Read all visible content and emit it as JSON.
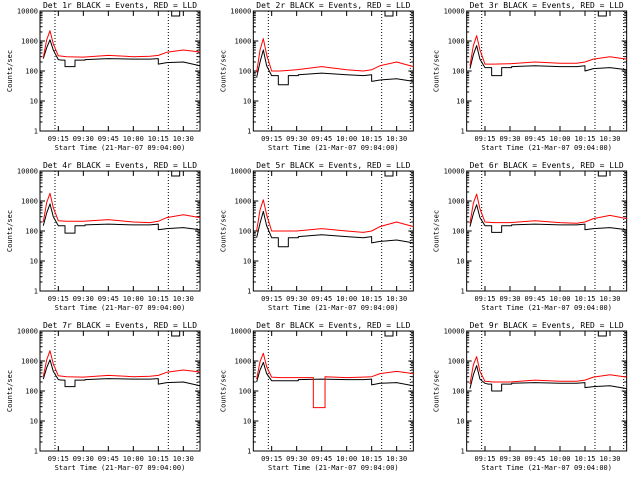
{
  "shared": {
    "x_tick_labels": [
      "09:15",
      "09:30",
      "09:45",
      "10:00",
      "10:15",
      "10:30"
    ],
    "y_tick_labels": [
      "1",
      "10",
      "100",
      "1000",
      "10000"
    ],
    "xlabel": "Start Time (21-Mar-07 09:04:00)",
    "ylabel": "Counts/sec",
    "colors": {
      "events": "#000000",
      "lld": "#ff0000"
    }
  },
  "chart_data": [
    {
      "type": "line",
      "title": "Det 1r BLACK = Events, RED = LLD",
      "xlabel": "Start Time (21-Mar-07 09:04:00)",
      "ylabel": "Counts/sec",
      "x_ticks": [
        "09:15",
        "09:30",
        "09:45",
        "10:00",
        "10:15",
        "10:30"
      ],
      "ylim": [
        1,
        10000
      ],
      "yscale": "log",
      "series": [
        {
          "color": "#000000",
          "x": [
            "09:06",
            "09:08",
            "09:10",
            "09:12",
            "09:15",
            "09:17",
            "09:19",
            "09:19",
            "09:25",
            "09:25",
            "09:31",
            "09:31",
            "09:45",
            "10:00",
            "10:10",
            "10:15",
            "10:15",
            "10:20",
            "10:30",
            "10:40"
          ],
          "y": [
            260,
            600,
            1100,
            500,
            240,
            230,
            230,
            140,
            140,
            230,
            230,
            240,
            260,
            250,
            250,
            260,
            170,
            190,
            200,
            150
          ]
        },
        {
          "color": "#ff0000",
          "x": [
            "09:06",
            "09:08",
            "09:10",
            "09:12",
            "09:15",
            "09:20",
            "09:30",
            "09:45",
            "10:00",
            "10:10",
            "10:15",
            "10:20",
            "10:30",
            "10:40"
          ],
          "y": [
            280,
            1100,
            2200,
            800,
            320,
            300,
            290,
            330,
            300,
            310,
            330,
            420,
            500,
            430
          ]
        }
      ]
    },
    {
      "type": "line",
      "title": "Det 2r BLACK = Events, RED = LLD",
      "xlabel": "Start Time (21-Mar-07 09:04:00)",
      "ylabel": "Counts/sec",
      "x_ticks": [
        "09:15",
        "09:30",
        "09:45",
        "10:00",
        "10:15",
        "10:30"
      ],
      "ylim": [
        1,
        10000
      ],
      "yscale": "log",
      "series": [
        {
          "color": "#000000",
          "x": [
            "09:06",
            "09:08",
            "09:10",
            "09:12",
            "09:15",
            "09:17",
            "09:19",
            "09:19",
            "09:25",
            "09:25",
            "09:31",
            "09:31",
            "09:45",
            "10:00",
            "10:10",
            "10:15",
            "10:15",
            "10:20",
            "10:30",
            "10:40"
          ],
          "y": [
            60,
            200,
            500,
            150,
            70,
            70,
            70,
            35,
            35,
            70,
            70,
            75,
            85,
            75,
            70,
            75,
            45,
            50,
            55,
            45
          ]
        },
        {
          "color": "#ff0000",
          "x": [
            "09:06",
            "09:08",
            "09:10",
            "09:12",
            "09:15",
            "09:20",
            "09:30",
            "09:45",
            "10:00",
            "10:10",
            "10:15",
            "10:20",
            "10:30",
            "10:40"
          ],
          "y": [
            90,
            500,
            1200,
            350,
            100,
            100,
            110,
            140,
            110,
            100,
            110,
            150,
            200,
            140
          ]
        }
      ]
    },
    {
      "type": "line",
      "title": "Det 3r BLACK = Events, RED = LLD",
      "xlabel": "Start Time (21-Mar-07 09:04:00)",
      "ylabel": "Counts/sec",
      "x_ticks": [
        "09:15",
        "09:30",
        "09:45",
        "10:00",
        "10:15",
        "10:30"
      ],
      "ylim": [
        1,
        10000
      ],
      "yscale": "log",
      "series": [
        {
          "color": "#000000",
          "x": [
            "09:06",
            "09:08",
            "09:10",
            "09:12",
            "09:15",
            "09:17",
            "09:19",
            "09:19",
            "09:25",
            "09:25",
            "09:31",
            "09:31",
            "09:45",
            "10:00",
            "10:10",
            "10:15",
            "10:15",
            "10:20",
            "10:30",
            "10:40"
          ],
          "y": [
            120,
            350,
            700,
            250,
            130,
            130,
            130,
            70,
            70,
            130,
            130,
            140,
            150,
            140,
            140,
            150,
            100,
            120,
            130,
            110
          ]
        },
        {
          "color": "#ff0000",
          "x": [
            "09:06",
            "09:08",
            "09:10",
            "09:12",
            "09:15",
            "09:20",
            "09:30",
            "09:45",
            "10:00",
            "10:10",
            "10:15",
            "10:20",
            "10:30",
            "10:40"
          ],
          "y": [
            150,
            700,
            1500,
            500,
            170,
            170,
            175,
            200,
            180,
            180,
            200,
            250,
            300,
            250
          ]
        }
      ]
    },
    {
      "type": "line",
      "title": "Det 4r BLACK = Events, RED = LLD",
      "xlabel": "Start Time (21-Mar-07 09:04:00)",
      "ylabel": "Counts/sec",
      "x_ticks": [
        "09:15",
        "09:30",
        "09:45",
        "10:00",
        "10:15",
        "10:30"
      ],
      "ylim": [
        1,
        10000
      ],
      "yscale": "log",
      "series": [
        {
          "color": "#000000",
          "x": [
            "09:06",
            "09:08",
            "09:10",
            "09:12",
            "09:15",
            "09:17",
            "09:19",
            "09:19",
            "09:25",
            "09:25",
            "09:31",
            "09:31",
            "09:45",
            "10:00",
            "10:10",
            "10:15",
            "10:15",
            "10:20",
            "10:30",
            "10:40"
          ],
          "y": [
            150,
            400,
            800,
            300,
            150,
            150,
            150,
            85,
            85,
            150,
            150,
            160,
            170,
            160,
            160,
            170,
            110,
            120,
            130,
            110
          ]
        },
        {
          "color": "#ff0000",
          "x": [
            "09:06",
            "09:08",
            "09:10",
            "09:12",
            "09:15",
            "09:20",
            "09:30",
            "09:45",
            "10:00",
            "10:10",
            "10:15",
            "10:20",
            "10:30",
            "10:40"
          ],
          "y": [
            200,
            900,
            1800,
            600,
            220,
            210,
            210,
            240,
            200,
            190,
            210,
            280,
            350,
            280
          ]
        }
      ]
    },
    {
      "type": "line",
      "title": "Det 5r BLACK = Events, RED = LLD",
      "xlabel": "Start Time (21-Mar-07 09:04:00)",
      "ylabel": "Counts/sec",
      "x_ticks": [
        "09:15",
        "09:30",
        "09:45",
        "10:00",
        "10:15",
        "10:30"
      ],
      "ylim": [
        1,
        10000
      ],
      "yscale": "log",
      "series": [
        {
          "color": "#000000",
          "x": [
            "09:06",
            "09:08",
            "09:10",
            "09:12",
            "09:15",
            "09:17",
            "09:19",
            "09:19",
            "09:25",
            "09:25",
            "09:31",
            "09:31",
            "09:45",
            "10:00",
            "10:10",
            "10:15",
            "10:15",
            "10:20",
            "10:30",
            "10:40"
          ],
          "y": [
            60,
            180,
            450,
            150,
            60,
            60,
            60,
            30,
            30,
            60,
            60,
            65,
            75,
            65,
            60,
            65,
            40,
            45,
            50,
            40
          ]
        },
        {
          "color": "#ff0000",
          "x": [
            "09:06",
            "09:08",
            "09:10",
            "09:12",
            "09:15",
            "09:20",
            "09:30",
            "09:45",
            "10:00",
            "10:10",
            "10:15",
            "10:20",
            "10:30",
            "10:40"
          ],
          "y": [
            100,
            500,
            1100,
            350,
            100,
            100,
            100,
            120,
            100,
            90,
            100,
            140,
            200,
            140
          ]
        }
      ]
    },
    {
      "type": "line",
      "title": "Det 6r BLACK = Events, RED = LLD",
      "xlabel": "Start Time (21-Mar-07 09:04:00)",
      "ylabel": "Counts/sec",
      "x_ticks": [
        "09:15",
        "09:30",
        "09:45",
        "10:00",
        "10:15",
        "10:30"
      ],
      "ylim": [
        1,
        10000
      ],
      "yscale": "log",
      "series": [
        {
          "color": "#000000",
          "x": [
            "09:06",
            "09:08",
            "09:10",
            "09:12",
            "09:15",
            "09:17",
            "09:19",
            "09:19",
            "09:25",
            "09:25",
            "09:31",
            "09:31",
            "09:45",
            "10:00",
            "10:10",
            "10:15",
            "10:15",
            "10:20",
            "10:30",
            "10:40"
          ],
          "y": [
            140,
            380,
            750,
            280,
            150,
            150,
            150,
            90,
            90,
            150,
            150,
            160,
            170,
            160,
            160,
            170,
            110,
            120,
            130,
            110
          ]
        },
        {
          "color": "#ff0000",
          "x": [
            "09:06",
            "09:08",
            "09:10",
            "09:12",
            "09:15",
            "09:20",
            "09:30",
            "09:45",
            "10:00",
            "10:10",
            "10:15",
            "10:20",
            "10:30",
            "10:40"
          ],
          "y": [
            180,
            850,
            1700,
            550,
            200,
            190,
            190,
            220,
            190,
            180,
            200,
            260,
            330,
            260
          ]
        }
      ]
    },
    {
      "type": "line",
      "title": "Det 7r BLACK = Events, RED = LLD",
      "xlabel": "Start Time (21-Mar-07 09:04:00)",
      "ylabel": "Counts/sec",
      "x_ticks": [
        "09:15",
        "09:30",
        "09:45",
        "10:00",
        "10:15",
        "10:30"
      ],
      "ylim": [
        1,
        10000
      ],
      "yscale": "log",
      "series": [
        {
          "color": "#000000",
          "x": [
            "09:06",
            "09:08",
            "09:10",
            "09:12",
            "09:15",
            "09:17",
            "09:19",
            "09:19",
            "09:25",
            "09:25",
            "09:31",
            "09:31",
            "09:45",
            "10:00",
            "10:10",
            "10:15",
            "10:15",
            "10:20",
            "10:30",
            "10:40"
          ],
          "y": [
            250,
            600,
            1100,
            450,
            240,
            230,
            230,
            140,
            140,
            230,
            230,
            240,
            260,
            250,
            250,
            260,
            170,
            190,
            200,
            150
          ]
        },
        {
          "color": "#ff0000",
          "x": [
            "09:06",
            "09:08",
            "09:10",
            "09:12",
            "09:15",
            "09:20",
            "09:30",
            "09:45",
            "10:00",
            "10:10",
            "10:15",
            "10:20",
            "10:30",
            "10:40"
          ],
          "y": [
            300,
            1100,
            2200,
            800,
            320,
            300,
            290,
            330,
            300,
            310,
            330,
            420,
            500,
            430
          ]
        }
      ]
    },
    {
      "type": "line",
      "title": "Det 8r BLACK = Events, RED = LLD",
      "xlabel": "Start Time (21-Mar-07 09:04:00)",
      "ylabel": "Counts/sec",
      "x_ticks": [
        "09:15",
        "09:30",
        "09:45",
        "10:00",
        "10:15",
        "10:30"
      ],
      "ylim": [
        1,
        10000
      ],
      "yscale": "log",
      "series": [
        {
          "color": "#000000",
          "x": [
            "09:06",
            "09:08",
            "09:10",
            "09:12",
            "09:15",
            "09:17",
            "09:19",
            "09:19",
            "09:25",
            "09:25",
            "09:31",
            "09:31",
            "09:45",
            "10:00",
            "10:10",
            "10:15",
            "10:15",
            "10:20",
            "10:30",
            "10:40"
          ],
          "y": [
            200,
            500,
            900,
            380,
            220,
            220,
            220,
            220,
            220,
            220,
            220,
            240,
            250,
            240,
            240,
            250,
            160,
            180,
            190,
            150
          ]
        },
        {
          "color": "#ff0000",
          "x": [
            "09:06",
            "09:08",
            "09:10",
            "09:12",
            "09:15",
            "09:20",
            "09:30",
            "09:40",
            "09:40",
            "09:47",
            "09:47",
            "10:00",
            "10:10",
            "10:15",
            "10:20",
            "10:30",
            "10:40"
          ],
          "y": [
            250,
            950,
            1800,
            650,
            290,
            280,
            280,
            280,
            28,
            28,
            300,
            280,
            290,
            300,
            380,
            450,
            380
          ]
        }
      ]
    },
    {
      "type": "line",
      "title": "Det 9r BLACK = Events, RED = LLD",
      "xlabel": "Start Time (21-Mar-07 09:04:00)",
      "ylabel": "Counts/sec",
      "x_ticks": [
        "09:15",
        "09:30",
        "09:45",
        "10:00",
        "10:15",
        "10:30"
      ],
      "ylim": [
        1,
        10000
      ],
      "yscale": "log",
      "series": [
        {
          "color": "#000000",
          "x": [
            "09:06",
            "09:08",
            "09:10",
            "09:12",
            "09:15",
            "09:17",
            "09:19",
            "09:19",
            "09:25",
            "09:25",
            "09:31",
            "09:31",
            "09:45",
            "10:00",
            "10:10",
            "10:15",
            "10:15",
            "10:20",
            "10:30",
            "10:40"
          ],
          "y": [
            120,
            350,
            700,
            250,
            180,
            170,
            170,
            100,
            100,
            170,
            170,
            180,
            190,
            180,
            180,
            190,
            130,
            140,
            150,
            120
          ]
        },
        {
          "color": "#ff0000",
          "x": [
            "09:06",
            "09:08",
            "09:10",
            "09:12",
            "09:15",
            "09:20",
            "09:30",
            "09:45",
            "10:00",
            "10:10",
            "10:15",
            "10:20",
            "10:30",
            "10:40"
          ],
          "y": [
            170,
            750,
            1400,
            450,
            210,
            200,
            200,
            230,
            210,
            210,
            230,
            290,
            350,
            290
          ]
        }
      ]
    }
  ]
}
